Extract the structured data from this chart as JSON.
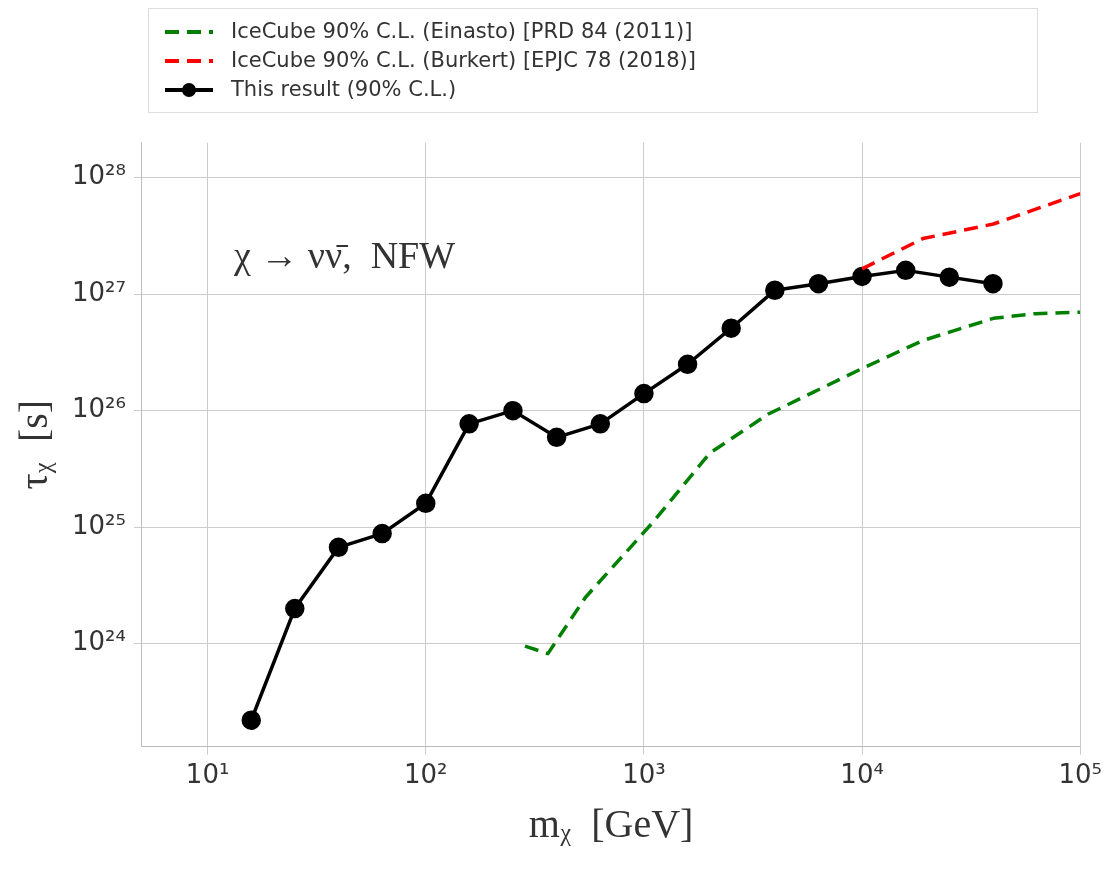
{
  "chart_data": {
    "type": "line",
    "xlabel": "mᵪ  [GeV]",
    "ylabel": "τᵪ  [s]",
    "log": "xy",
    "grid": true,
    "legend": "top",
    "xlim": [
      5,
      100000
    ],
    "xticks": [
      {
        "value": 10,
        "label": "10¹"
      },
      {
        "value": 100,
        "label": "10²"
      },
      {
        "value": 1000,
        "label": "10³"
      },
      {
        "value": 10000,
        "label": "10⁴"
      },
      {
        "value": 100000,
        "label": "10⁵"
      }
    ],
    "ylim": [
      1.3e+23,
      2e+28
    ],
    "yticks": [
      {
        "value": 1e+24,
        "label": "10²⁴"
      },
      {
        "value": 1e+25,
        "label": "10²⁵"
      },
      {
        "value": 1e+26,
        "label": "10²⁶"
      },
      {
        "value": 1e+27,
        "label": "10²⁷"
      },
      {
        "value": 1e+28,
        "label": "10²⁸"
      }
    ],
    "annotations": [
      "χ → νν̄,  NFW"
    ],
    "series": [
      {
        "name": "IceCube 90% C.L. (Einasto) [PRD 84 (2011)]",
        "color": "#008000",
        "line_style": "dashed",
        "marker": "none",
        "x": [
          285,
          363,
          540,
          1100,
          2000,
          3700,
          10000,
          19000,
          40000,
          62000,
          100000
        ],
        "values": [
          9.5e+23,
          8.2e+23,
          2.5e+24,
          1.1e+25,
          4.3e+25,
          9.3e+25,
          2.3e+26,
          4e+26,
          6.2e+26,
          6.8e+26,
          7e+26
        ]
      },
      {
        "name": "IceCube 90% C.L. (Burkert) [EPJC 78 (2018)]",
        "color": "#ff0000",
        "line_style": "dashed",
        "marker": "none",
        "x": [
          10000,
          19000,
          40000,
          100000
        ],
        "values": [
          1.65e+27,
          3e+27,
          4e+27,
          7.3e+27
        ]
      },
      {
        "name": "This result (90% C.L.)",
        "color": "#000000",
        "line_style": "solid",
        "marker": "circle",
        "x": [
          15.85,
          25.1,
          39.8,
          63.1,
          100,
          158,
          251,
          398,
          631,
          1000,
          1585,
          2512,
          3981,
          6310,
          10000,
          15850,
          25120,
          39810
        ],
        "values": [
          2.2e+23,
          2e+24,
          6.7e+24,
          8.8e+24,
          1.6e+25,
          7.7e+25,
          1e+26,
          5.9e+25,
          7.7e+25,
          1.4e+26,
          2.5e+26,
          5.1e+26,
          1.08e+27,
          1.23e+27,
          1.42e+27,
          1.6e+27,
          1.4e+27,
          1.23e+27
        ]
      }
    ]
  }
}
